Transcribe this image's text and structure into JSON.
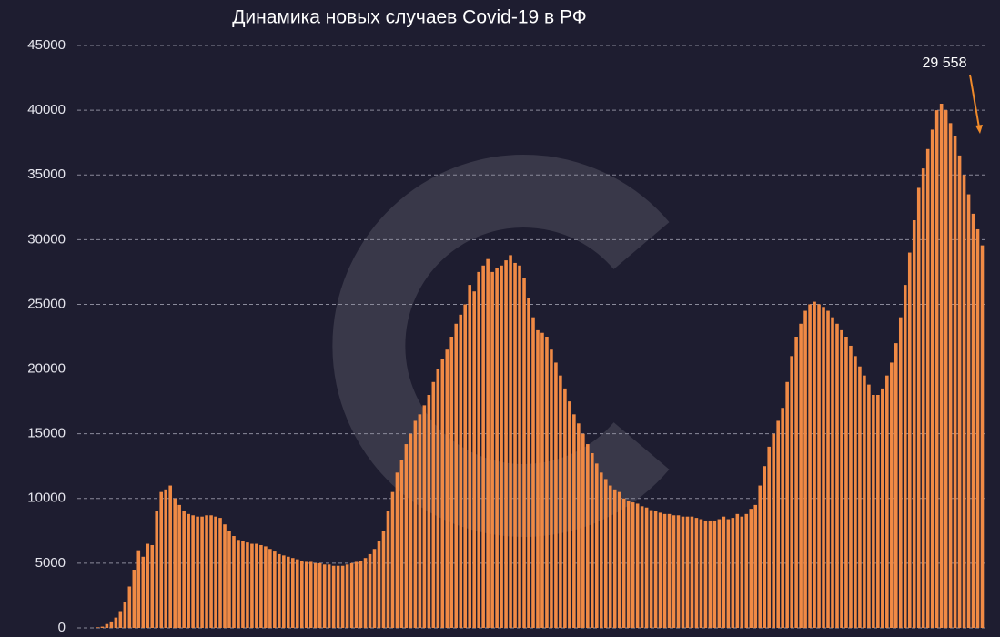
{
  "chart_data": {
    "type": "bar",
    "title": "Динамика новых случаев Covid-19 в РФ",
    "annotation": "29 558",
    "color": "#f08a45",
    "ylim": [
      0,
      45000
    ],
    "yticks": [
      0,
      5000,
      10000,
      15000,
      20000,
      25000,
      30000,
      35000,
      40000,
      45000
    ],
    "grid": true,
    "values": [
      0,
      0,
      0,
      0,
      50,
      100,
      300,
      500,
      800,
      1300,
      2000,
      3200,
      4500,
      6000,
      5500,
      6500,
      6400,
      9000,
      10500,
      10700,
      11000,
      10000,
      9500,
      9000,
      8800,
      8700,
      8600,
      8600,
      8700,
      8700,
      8600,
      8500,
      8000,
      7500,
      7100,
      6800,
      6700,
      6600,
      6500,
      6500,
      6400,
      6300,
      6100,
      5900,
      5700,
      5600,
      5500,
      5400,
      5300,
      5200,
      5100,
      5100,
      5000,
      5000,
      4900,
      4900,
      4800,
      4800,
      4800,
      4900,
      5000,
      5100,
      5200,
      5400,
      5700,
      6100,
      6700,
      7500,
      9000,
      10500,
      12000,
      13000,
      14200,
      15000,
      16000,
      16500,
      17200,
      18000,
      19000,
      20000,
      20800,
      21500,
      22500,
      23500,
      24200,
      25000,
      26500,
      26000,
      27500,
      28000,
      28500,
      27500,
      27800,
      28000,
      28400,
      28800,
      28200,
      28000,
      27000,
      25500,
      24000,
      23000,
      22800,
      22500,
      21500,
      20500,
      19500,
      18500,
      17500,
      16500,
      15800,
      15000,
      14200,
      13500,
      12700,
      12000,
      11500,
      11000,
      10700,
      10500,
      10000,
      9800,
      9700,
      9600,
      9400,
      9300,
      9100,
      9000,
      8900,
      8800,
      8800,
      8700,
      8700,
      8600,
      8600,
      8600,
      8500,
      8400,
      8300,
      8300,
      8300,
      8400,
      8600,
      8400,
      8500,
      8800,
      8600,
      8800,
      9200,
      9500,
      11000,
      12500,
      14000,
      15000,
      16000,
      17000,
      19000,
      21000,
      22500,
      23500,
      24500,
      25000,
      25200,
      25000,
      24800,
      24500,
      24000,
      23500,
      23000,
      22500,
      21800,
      21000,
      20200,
      19500,
      18800,
      18000,
      18000,
      18500,
      19500,
      20500,
      22000,
      24000,
      26500,
      29000,
      31500,
      34000,
      35500,
      37000,
      38500,
      40000,
      40500,
      40000,
      39000,
      38000,
      36500,
      35000,
      33500,
      32000,
      30800,
      29558
    ]
  }
}
